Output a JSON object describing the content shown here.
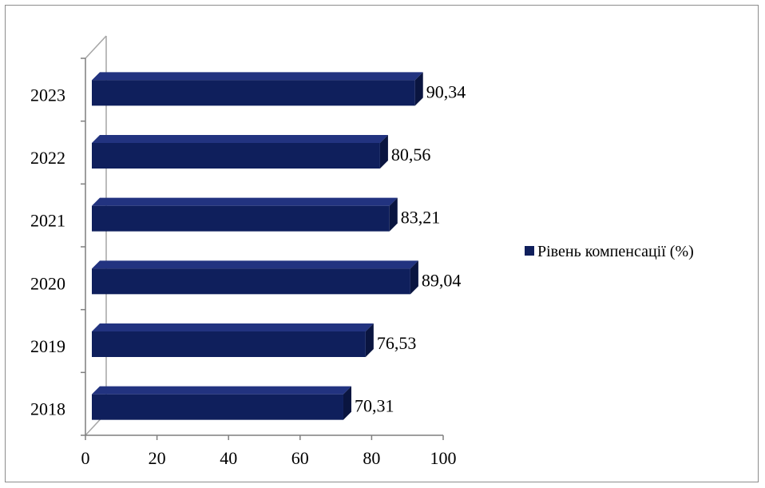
{
  "chart_data": {
    "type": "bar",
    "orientation": "horizontal",
    "categories": [
      "2018",
      "2019",
      "2020",
      "2021",
      "2022",
      "2023"
    ],
    "series": [
      {
        "name": "Рівень компенсації (%)",
        "values": [
          70.31,
          76.53,
          89.04,
          83.21,
          80.56,
          90.34
        ],
        "labels": [
          "70,31",
          "76,53",
          "89,04",
          "83,21",
          "80,56",
          "90,34"
        ],
        "color": "#0f1f5c"
      }
    ],
    "xlim": [
      0,
      100
    ],
    "x_ticks": [
      0,
      20,
      40,
      60,
      80,
      100
    ],
    "style": "3d",
    "legend_position": "right",
    "grid": false
  }
}
